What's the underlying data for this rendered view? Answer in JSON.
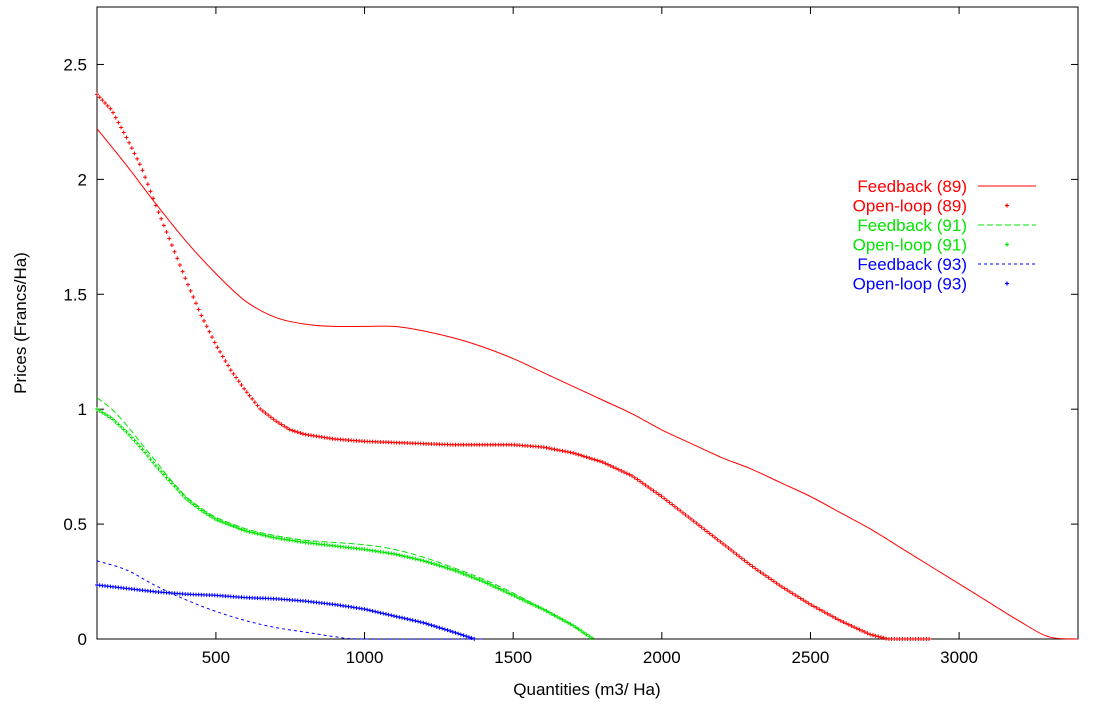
{
  "chart_data": {
    "type": "line",
    "title": "",
    "xlabel": "Quantities   (m3/ Ha)",
    "ylabel": "Prices  (Francs/Ha)",
    "xlim": [
      100,
      3400
    ],
    "ylim": [
      0,
      2.75
    ],
    "x_ticks": [
      500,
      1000,
      1500,
      2000,
      2500,
      3000
    ],
    "x_tick_labels": [
      "500",
      "1000",
      "1500",
      "2000",
      "2500",
      "3000"
    ],
    "y_ticks": [
      0,
      0.5,
      1,
      1.5,
      2,
      2.5
    ],
    "y_tick_labels": [
      "0",
      "0.5",
      "1",
      "1.5",
      "2",
      "2.5"
    ],
    "grid": false,
    "legend_position": "right",
    "series": [
      {
        "name": "Feedback (89)",
        "color": "#ff0000",
        "style": "solid",
        "points": [
          [
            100,
            2.22
          ],
          [
            200,
            2.06
          ],
          [
            300,
            1.89
          ],
          [
            400,
            1.73
          ],
          [
            500,
            1.59
          ],
          [
            600,
            1.47
          ],
          [
            700,
            1.4
          ],
          [
            800,
            1.37
          ],
          [
            900,
            1.36
          ],
          [
            1000,
            1.36
          ],
          [
            1100,
            1.36
          ],
          [
            1200,
            1.34
          ],
          [
            1300,
            1.31
          ],
          [
            1400,
            1.27
          ],
          [
            1500,
            1.22
          ],
          [
            1600,
            1.16
          ],
          [
            1700,
            1.1
          ],
          [
            1800,
            1.04
          ],
          [
            1900,
            0.98
          ],
          [
            2000,
            0.91
          ],
          [
            2100,
            0.85
          ],
          [
            2200,
            0.79
          ],
          [
            2300,
            0.74
          ],
          [
            2400,
            0.68
          ],
          [
            2500,
            0.62
          ],
          [
            2600,
            0.55
          ],
          [
            2700,
            0.48
          ],
          [
            2800,
            0.4
          ],
          [
            2900,
            0.32
          ],
          [
            3000,
            0.24
          ],
          [
            3100,
            0.16
          ],
          [
            3200,
            0.08
          ],
          [
            3300,
            0.01
          ],
          [
            3400,
            0.0
          ]
        ]
      },
      {
        "name": "Open-loop (89)",
        "color": "#ff0000",
        "style": "plus",
        "points": [
          [
            100,
            2.37
          ],
          [
            150,
            2.3
          ],
          [
            200,
            2.18
          ],
          [
            250,
            2.05
          ],
          [
            300,
            1.88
          ],
          [
            350,
            1.72
          ],
          [
            400,
            1.56
          ],
          [
            450,
            1.41
          ],
          [
            500,
            1.28
          ],
          [
            550,
            1.17
          ],
          [
            600,
            1.08
          ],
          [
            650,
            1.0
          ],
          [
            700,
            0.95
          ],
          [
            750,
            0.91
          ],
          [
            800,
            0.89
          ],
          [
            900,
            0.87
          ],
          [
            1000,
            0.86
          ],
          [
            1100,
            0.855
          ],
          [
            1200,
            0.85
          ],
          [
            1300,
            0.845
          ],
          [
            1400,
            0.845
          ],
          [
            1500,
            0.845
          ],
          [
            1600,
            0.835
          ],
          [
            1700,
            0.81
          ],
          [
            1800,
            0.77
          ],
          [
            1900,
            0.71
          ],
          [
            2000,
            0.62
          ],
          [
            2100,
            0.52
          ],
          [
            2200,
            0.42
          ],
          [
            2300,
            0.32
          ],
          [
            2400,
            0.23
          ],
          [
            2500,
            0.15
          ],
          [
            2600,
            0.08
          ],
          [
            2700,
            0.02
          ],
          [
            2760,
            0.0
          ],
          [
            2900,
            0.0
          ]
        ]
      },
      {
        "name": "Feedback (91)",
        "color": "#00e600",
        "style": "dashed",
        "points": [
          [
            100,
            1.05
          ],
          [
            150,
            1.0
          ],
          [
            200,
            0.93
          ],
          [
            250,
            0.85
          ],
          [
            300,
            0.77
          ],
          [
            350,
            0.69
          ],
          [
            400,
            0.62
          ],
          [
            450,
            0.57
          ],
          [
            500,
            0.53
          ],
          [
            600,
            0.48
          ],
          [
            700,
            0.45
          ],
          [
            800,
            0.43
          ],
          [
            900,
            0.42
          ],
          [
            1000,
            0.41
          ],
          [
            1100,
            0.39
          ],
          [
            1200,
            0.355
          ],
          [
            1300,
            0.31
          ],
          [
            1400,
            0.26
          ],
          [
            1500,
            0.2
          ],
          [
            1600,
            0.13
          ],
          [
            1700,
            0.06
          ],
          [
            1760,
            0.0
          ]
        ]
      },
      {
        "name": "Open-loop (91)",
        "color": "#00e600",
        "style": "plus",
        "points": [
          [
            100,
            1.0
          ],
          [
            150,
            0.96
          ],
          [
            200,
            0.9
          ],
          [
            250,
            0.83
          ],
          [
            300,
            0.75
          ],
          [
            350,
            0.68
          ],
          [
            400,
            0.61
          ],
          [
            450,
            0.56
          ],
          [
            500,
            0.52
          ],
          [
            600,
            0.47
          ],
          [
            700,
            0.44
          ],
          [
            800,
            0.42
          ],
          [
            900,
            0.405
          ],
          [
            1000,
            0.39
          ],
          [
            1100,
            0.37
          ],
          [
            1200,
            0.34
          ],
          [
            1300,
            0.3
          ],
          [
            1400,
            0.25
          ],
          [
            1500,
            0.19
          ],
          [
            1600,
            0.13
          ],
          [
            1700,
            0.06
          ],
          [
            1770,
            0.0
          ]
        ]
      },
      {
        "name": "Feedback (93)",
        "color": "#0000ff",
        "style": "dotted",
        "points": [
          [
            100,
            0.34
          ],
          [
            200,
            0.3
          ],
          [
            300,
            0.23
          ],
          [
            400,
            0.17
          ],
          [
            500,
            0.12
          ],
          [
            600,
            0.08
          ],
          [
            700,
            0.05
          ],
          [
            800,
            0.03
          ],
          [
            900,
            0.01
          ],
          [
            1000,
            0.0
          ],
          [
            1400,
            0.0
          ]
        ]
      },
      {
        "name": "Open-loop (93)",
        "color": "#0000ff",
        "style": "plus",
        "points": [
          [
            100,
            0.235
          ],
          [
            200,
            0.22
          ],
          [
            300,
            0.205
          ],
          [
            400,
            0.195
          ],
          [
            500,
            0.19
          ],
          [
            600,
            0.18
          ],
          [
            700,
            0.175
          ],
          [
            800,
            0.165
          ],
          [
            900,
            0.15
          ],
          [
            1000,
            0.13
          ],
          [
            1100,
            0.1
          ],
          [
            1200,
            0.07
          ],
          [
            1300,
            0.03
          ],
          [
            1370,
            0.0
          ]
        ]
      }
    ]
  }
}
